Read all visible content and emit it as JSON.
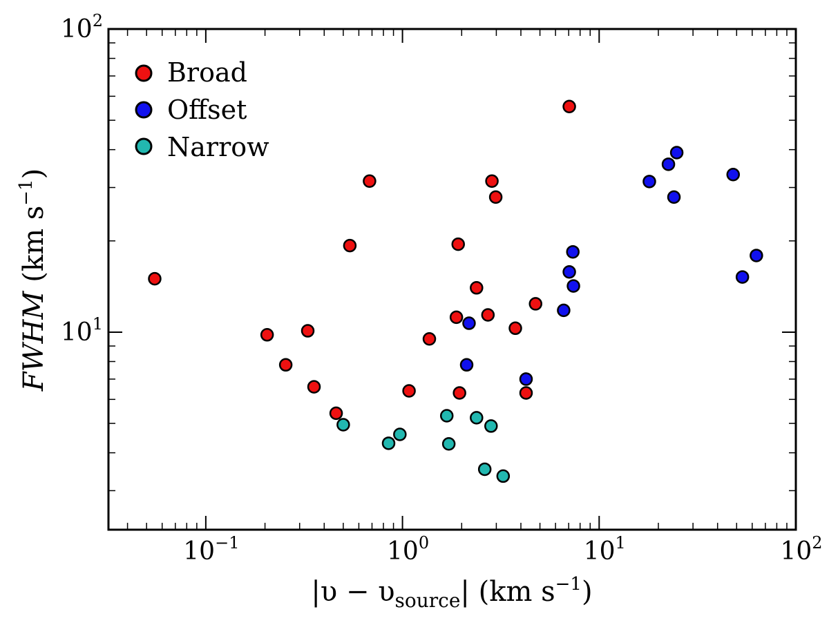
{
  "chart_data": {
    "type": "scatter",
    "xscale": "log",
    "yscale": "log",
    "xlim": [
      0.032,
      100
    ],
    "ylim": [
      2.23,
      100
    ],
    "xlabel": {
      "bar": "|",
      "v": "υ",
      "minus": " − ",
      "sub_base": "υ",
      "sub": "source",
      "units": "(km s",
      "exp": "−1",
      "close": ")"
    },
    "ylabel": {
      "italic": "FWHM",
      "units": " (km s",
      "exp": "−1",
      "close": ")"
    },
    "x_ticks": [
      {
        "base": "10",
        "exp": "−1",
        "value": 0.1
      },
      {
        "base": "10",
        "exp": "0",
        "value": 1
      },
      {
        "base": "10",
        "exp": "1",
        "value": 10
      },
      {
        "base": "10",
        "exp": "2",
        "value": 100
      }
    ],
    "y_ticks": [
      {
        "base": "10",
        "exp": "1",
        "value": 10
      },
      {
        "base": "10",
        "exp": "2",
        "value": 100
      }
    ],
    "legend_position": "top-left",
    "series": [
      {
        "name": "Broad",
        "color": "#ee1111",
        "points": [
          [
            0.055,
            15.0
          ],
          [
            0.205,
            9.8
          ],
          [
            0.255,
            7.8
          ],
          [
            0.33,
            10.1
          ],
          [
            0.355,
            6.6
          ],
          [
            0.46,
            5.4
          ],
          [
            0.54,
            19.3
          ],
          [
            0.68,
            31.5
          ],
          [
            1.08,
            6.4
          ],
          [
            1.37,
            9.5
          ],
          [
            1.88,
            11.2
          ],
          [
            1.92,
            19.5
          ],
          [
            1.95,
            6.3
          ],
          [
            2.38,
            14.0
          ],
          [
            2.72,
            11.4
          ],
          [
            2.85,
            31.5
          ],
          [
            2.98,
            27.9
          ],
          [
            3.75,
            10.3
          ],
          [
            4.25,
            6.3
          ],
          [
            4.75,
            12.4
          ],
          [
            7.05,
            55.5
          ]
        ]
      },
      {
        "name": "Offset",
        "color": "#1111ee",
        "points": [
          [
            2.12,
            7.8
          ],
          [
            2.18,
            10.7
          ],
          [
            4.25,
            7.0
          ],
          [
            6.6,
            11.8
          ],
          [
            7.05,
            15.8
          ],
          [
            7.35,
            18.4
          ],
          [
            7.4,
            14.2
          ],
          [
            18.0,
            31.4
          ],
          [
            22.5,
            35.8
          ],
          [
            24.0,
            27.9
          ],
          [
            24.8,
            39.1
          ],
          [
            48.0,
            33.1
          ],
          [
            53.5,
            15.2
          ],
          [
            63.0,
            17.9
          ]
        ]
      },
      {
        "name": "Narrow",
        "color": "#22b8b0",
        "points": [
          [
            0.5,
            4.95
          ],
          [
            0.85,
            4.3
          ],
          [
            0.97,
            4.6
          ],
          [
            1.68,
            5.3
          ],
          [
            1.72,
            4.28
          ],
          [
            2.38,
            5.22
          ],
          [
            2.62,
            3.53
          ],
          [
            2.82,
            4.9
          ],
          [
            3.25,
            3.35
          ]
        ]
      }
    ]
  }
}
